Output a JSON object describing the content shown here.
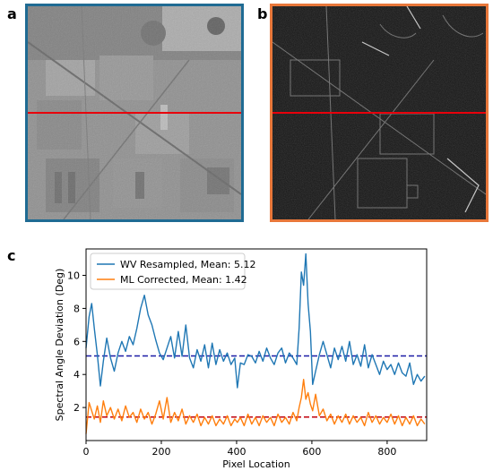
{
  "panels": {
    "a": {
      "letter": "a",
      "border_color": "#1f6b93"
    },
    "b": {
      "letter": "b",
      "border_color": "#e8773a"
    },
    "c": {
      "letter": "c"
    }
  },
  "overlay_line_color": "#e8000b",
  "chart_data": {
    "type": "line",
    "xlabel": "Pixel Location",
    "ylabel": "Spectral Angle Deviation (Deg)",
    "xlim": [
      0,
      905
    ],
    "ylim": [
      0,
      11.6
    ],
    "xticks": [
      0,
      200,
      400,
      600,
      800
    ],
    "yticks": [
      2,
      4,
      6,
      8,
      10
    ],
    "grid": false,
    "legend_position": "top-left",
    "series": [
      {
        "name": "WV Resampled, Mean: 5.12",
        "color": "#1f77b4",
        "mean": 5.12,
        "points": [
          [
            0,
            5.6
          ],
          [
            8,
            7.5
          ],
          [
            15,
            8.3
          ],
          [
            22,
            6.8
          ],
          [
            30,
            5.2
          ],
          [
            38,
            3.3
          ],
          [
            46,
            4.8
          ],
          [
            55,
            6.2
          ],
          [
            65,
            5.0
          ],
          [
            75,
            4.2
          ],
          [
            85,
            5.3
          ],
          [
            95,
            6.0
          ],
          [
            105,
            5.4
          ],
          [
            115,
            6.3
          ],
          [
            125,
            5.8
          ],
          [
            135,
            6.8
          ],
          [
            145,
            8.0
          ],
          [
            155,
            8.8
          ],
          [
            165,
            7.6
          ],
          [
            175,
            7.0
          ],
          [
            185,
            6.1
          ],
          [
            195,
            5.3
          ],
          [
            205,
            4.9
          ],
          [
            215,
            5.6
          ],
          [
            225,
            6.3
          ],
          [
            235,
            5.0
          ],
          [
            245,
            6.6
          ],
          [
            255,
            5.1
          ],
          [
            265,
            7.0
          ],
          [
            275,
            5.0
          ],
          [
            285,
            4.4
          ],
          [
            295,
            5.5
          ],
          [
            305,
            4.8
          ],
          [
            315,
            5.8
          ],
          [
            325,
            4.4
          ],
          [
            335,
            5.9
          ],
          [
            345,
            4.6
          ],
          [
            355,
            5.5
          ],
          [
            365,
            4.8
          ],
          [
            375,
            5.3
          ],
          [
            385,
            4.6
          ],
          [
            395,
            5.0
          ],
          [
            402,
            3.2
          ],
          [
            410,
            4.7
          ],
          [
            420,
            4.6
          ],
          [
            430,
            5.2
          ],
          [
            440,
            5.1
          ],
          [
            450,
            4.7
          ],
          [
            460,
            5.4
          ],
          [
            470,
            4.8
          ],
          [
            480,
            5.6
          ],
          [
            490,
            5.0
          ],
          [
            500,
            4.6
          ],
          [
            510,
            5.3
          ],
          [
            520,
            5.6
          ],
          [
            530,
            4.7
          ],
          [
            540,
            5.3
          ],
          [
            550,
            5.0
          ],
          [
            560,
            4.6
          ],
          [
            566,
            6.8
          ],
          [
            572,
            10.2
          ],
          [
            578,
            9.4
          ],
          [
            584,
            11.3
          ],
          [
            590,
            8.3
          ],
          [
            596,
            6.6
          ],
          [
            602,
            3.4
          ],
          [
            610,
            4.2
          ],
          [
            620,
            5.2
          ],
          [
            630,
            6.0
          ],
          [
            640,
            5.2
          ],
          [
            650,
            4.4
          ],
          [
            660,
            5.6
          ],
          [
            670,
            4.9
          ],
          [
            680,
            5.7
          ],
          [
            690,
            4.8
          ],
          [
            700,
            6.0
          ],
          [
            710,
            4.6
          ],
          [
            720,
            5.2
          ],
          [
            730,
            4.5
          ],
          [
            740,
            5.8
          ],
          [
            750,
            4.4
          ],
          [
            760,
            5.2
          ],
          [
            770,
            4.6
          ],
          [
            780,
            4.0
          ],
          [
            790,
            4.8
          ],
          [
            800,
            4.3
          ],
          [
            810,
            4.6
          ],
          [
            820,
            4.0
          ],
          [
            830,
            4.7
          ],
          [
            840,
            4.1
          ],
          [
            850,
            3.9
          ],
          [
            860,
            4.7
          ],
          [
            870,
            3.4
          ],
          [
            880,
            4.0
          ],
          [
            890,
            3.6
          ],
          [
            900,
            3.9
          ]
        ]
      },
      {
        "name": "ML Corrected, Mean: 1.42",
        "color": "#ff7f0e",
        "mean": 1.42,
        "points": [
          [
            0,
            0.4
          ],
          [
            8,
            2.3
          ],
          [
            15,
            1.8
          ],
          [
            22,
            1.3
          ],
          [
            30,
            2.1
          ],
          [
            38,
            1.1
          ],
          [
            46,
            2.4
          ],
          [
            55,
            1.5
          ],
          [
            65,
            2.0
          ],
          [
            75,
            1.3
          ],
          [
            85,
            1.9
          ],
          [
            95,
            1.2
          ],
          [
            105,
            2.1
          ],
          [
            115,
            1.4
          ],
          [
            125,
            1.7
          ],
          [
            135,
            1.1
          ],
          [
            145,
            1.9
          ],
          [
            155,
            1.3
          ],
          [
            165,
            1.7
          ],
          [
            175,
            1.0
          ],
          [
            185,
            1.6
          ],
          [
            195,
            2.4
          ],
          [
            205,
            1.3
          ],
          [
            215,
            2.6
          ],
          [
            225,
            1.1
          ],
          [
            235,
            1.7
          ],
          [
            245,
            1.2
          ],
          [
            255,
            1.9
          ],
          [
            265,
            1.0
          ],
          [
            275,
            1.5
          ],
          [
            285,
            1.1
          ],
          [
            295,
            1.6
          ],
          [
            305,
            0.9
          ],
          [
            315,
            1.4
          ],
          [
            325,
            1.0
          ],
          [
            335,
            1.5
          ],
          [
            345,
            0.9
          ],
          [
            355,
            1.3
          ],
          [
            365,
            1.0
          ],
          [
            375,
            1.5
          ],
          [
            385,
            0.9
          ],
          [
            395,
            1.3
          ],
          [
            402,
            1.1
          ],
          [
            410,
            1.4
          ],
          [
            420,
            0.9
          ],
          [
            430,
            1.6
          ],
          [
            440,
            1.0
          ],
          [
            450,
            1.4
          ],
          [
            460,
            0.9
          ],
          [
            470,
            1.5
          ],
          [
            480,
            1.1
          ],
          [
            490,
            1.4
          ],
          [
            500,
            0.9
          ],
          [
            510,
            1.6
          ],
          [
            520,
            1.1
          ],
          [
            530,
            1.4
          ],
          [
            540,
            1.0
          ],
          [
            550,
            1.7
          ],
          [
            560,
            1.2
          ],
          [
            566,
            2.0
          ],
          [
            572,
            2.6
          ],
          [
            578,
            3.7
          ],
          [
            584,
            2.5
          ],
          [
            590,
            2.9
          ],
          [
            596,
            2.2
          ],
          [
            602,
            1.8
          ],
          [
            610,
            2.8
          ],
          [
            620,
            1.5
          ],
          [
            630,
            1.9
          ],
          [
            640,
            1.2
          ],
          [
            650,
            1.6
          ],
          [
            660,
            1.0
          ],
          [
            670,
            1.5
          ],
          [
            680,
            1.1
          ],
          [
            690,
            1.6
          ],
          [
            700,
            1.0
          ],
          [
            710,
            1.5
          ],
          [
            720,
            1.1
          ],
          [
            730,
            1.4
          ],
          [
            740,
            0.9
          ],
          [
            750,
            1.7
          ],
          [
            760,
            1.1
          ],
          [
            770,
            1.5
          ],
          [
            780,
            1.0
          ],
          [
            790,
            1.4
          ],
          [
            800,
            1.1
          ],
          [
            810,
            1.6
          ],
          [
            820,
            1.0
          ],
          [
            830,
            1.5
          ],
          [
            840,
            0.9
          ],
          [
            850,
            1.4
          ],
          [
            860,
            1.0
          ],
          [
            870,
            1.5
          ],
          [
            880,
            0.9
          ],
          [
            890,
            1.3
          ],
          [
            900,
            1.0
          ]
        ]
      }
    ],
    "mean_lines": [
      {
        "value": 5.12,
        "color": "#1a1aa6",
        "style": "dashed"
      },
      {
        "value": 1.42,
        "color": "#c0000b",
        "style": "dashed"
      }
    ]
  }
}
